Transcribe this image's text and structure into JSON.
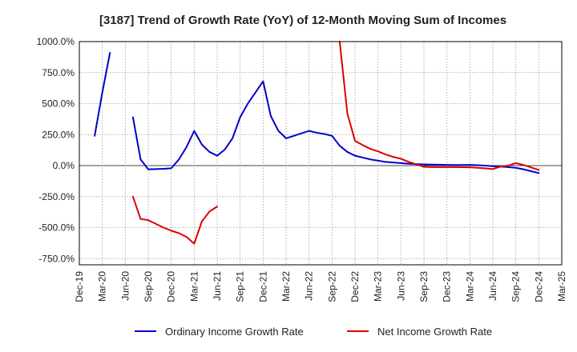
{
  "chart_data": {
    "type": "line",
    "title": "[3187]  Trend of Growth Rate (YoY) of 12-Month Moving Sum of Incomes",
    "xlabel": "",
    "ylabel": "",
    "ylim": [
      -800,
      1000
    ],
    "xlim": [
      "2019-12",
      "2025-03"
    ],
    "grid": true,
    "legend_position": "bottom",
    "y_ticks": [
      {
        "value": 1000,
        "label": "1000.0%"
      },
      {
        "value": 750,
        "label": "750.0%"
      },
      {
        "value": 500,
        "label": "500.0%"
      },
      {
        "value": 250,
        "label": "250.0%"
      },
      {
        "value": 0,
        "label": "0.0%"
      },
      {
        "value": -250,
        "label": "-250.0%"
      },
      {
        "value": -500,
        "label": "-500.0%"
      },
      {
        "value": -750,
        "label": "-750.0%"
      }
    ],
    "x_ticks": [
      {
        "date": "2019-12",
        "label": "Dec-19"
      },
      {
        "date": "2020-03",
        "label": "Mar-20"
      },
      {
        "date": "2020-06",
        "label": "Jun-20"
      },
      {
        "date": "2020-09",
        "label": "Sep-20"
      },
      {
        "date": "2020-12",
        "label": "Dec-20"
      },
      {
        "date": "2021-03",
        "label": "Mar-21"
      },
      {
        "date": "2021-06",
        "label": "Jun-21"
      },
      {
        "date": "2021-09",
        "label": "Sep-21"
      },
      {
        "date": "2021-12",
        "label": "Dec-21"
      },
      {
        "date": "2022-03",
        "label": "Mar-22"
      },
      {
        "date": "2022-06",
        "label": "Jun-22"
      },
      {
        "date": "2022-09",
        "label": "Sep-22"
      },
      {
        "date": "2022-12",
        "label": "Dec-22"
      },
      {
        "date": "2023-03",
        "label": "Mar-23"
      },
      {
        "date": "2023-06",
        "label": "Jun-23"
      },
      {
        "date": "2023-09",
        "label": "Sep-23"
      },
      {
        "date": "2023-12",
        "label": "Dec-23"
      },
      {
        "date": "2024-03",
        "label": "Mar-24"
      },
      {
        "date": "2024-06",
        "label": "Jun-24"
      },
      {
        "date": "2024-09",
        "label": "Sep-24"
      },
      {
        "date": "2024-12",
        "label": "Dec-24"
      },
      {
        "date": "2025-03",
        "label": "Mar-25"
      }
    ],
    "series": [
      {
        "name": "Ordinary Income Growth Rate",
        "color": "#0000cc",
        "points": [
          [
            "2020-02",
            240
          ],
          [
            "2020-03",
            590
          ],
          [
            "2020-04",
            910
          ],
          [
            "2020-05",
            null
          ],
          [
            "2020-07",
            390
          ],
          [
            "2020-08",
            50
          ],
          [
            "2020-09",
            -30
          ],
          [
            "2020-10",
            -28
          ],
          [
            "2020-11",
            -26
          ],
          [
            "2020-12",
            -22
          ],
          [
            "2021-01",
            50
          ],
          [
            "2021-02",
            150
          ],
          [
            "2021-03",
            280
          ],
          [
            "2021-04",
            170
          ],
          [
            "2021-05",
            110
          ],
          [
            "2021-06",
            80
          ],
          [
            "2021-07",
            130
          ],
          [
            "2021-08",
            220
          ],
          [
            "2021-09",
            390
          ],
          [
            "2021-10",
            500
          ],
          [
            "2021-11",
            590
          ],
          [
            "2021-12",
            680
          ],
          [
            "2022-01",
            400
          ],
          [
            "2022-02",
            280
          ],
          [
            "2022-03",
            220
          ],
          [
            "2022-04",
            240
          ],
          [
            "2022-05",
            260
          ],
          [
            "2022-06",
            280
          ],
          [
            "2022-07",
            265
          ],
          [
            "2022-08",
            255
          ],
          [
            "2022-09",
            240
          ],
          [
            "2022-10",
            160
          ],
          [
            "2022-11",
            110
          ],
          [
            "2022-12",
            80
          ],
          [
            "2023-01",
            65
          ],
          [
            "2023-02",
            50
          ],
          [
            "2023-03",
            40
          ],
          [
            "2023-04",
            30
          ],
          [
            "2023-05",
            25
          ],
          [
            "2023-06",
            20
          ],
          [
            "2023-07",
            15
          ],
          [
            "2023-08",
            12
          ],
          [
            "2023-09",
            10
          ],
          [
            "2023-10",
            8
          ],
          [
            "2023-11",
            7
          ],
          [
            "2023-12",
            6
          ],
          [
            "2024-01",
            5
          ],
          [
            "2024-02",
            5
          ],
          [
            "2024-03",
            6
          ],
          [
            "2024-04",
            3
          ],
          [
            "2024-05",
            0
          ],
          [
            "2024-06",
            -5
          ],
          [
            "2024-07",
            -8
          ],
          [
            "2024-08",
            -12
          ],
          [
            "2024-09",
            -18
          ],
          [
            "2024-10",
            -30
          ],
          [
            "2024-11",
            -45
          ],
          [
            "2024-12",
            -60
          ]
        ]
      },
      {
        "name": "Net Income Growth Rate",
        "color": "#dd0000",
        "points": [
          [
            "2020-07",
            -250
          ],
          [
            "2020-08",
            -430
          ],
          [
            "2020-09",
            -440
          ],
          [
            "2020-10",
            -470
          ],
          [
            "2020-11",
            -500
          ],
          [
            "2020-12",
            -525
          ],
          [
            "2021-01",
            -545
          ],
          [
            "2021-02",
            -575
          ],
          [
            "2021-03",
            -630
          ],
          [
            "2021-04",
            -450
          ],
          [
            "2021-05",
            -370
          ],
          [
            "2021-06",
            -330
          ],
          [
            "2021-07",
            null
          ],
          [
            "2022-10",
            1000
          ],
          [
            "2022-11",
            420
          ],
          [
            "2022-12",
            200
          ],
          [
            "2023-01",
            165
          ],
          [
            "2023-02",
            135
          ],
          [
            "2023-03",
            115
          ],
          [
            "2023-04",
            90
          ],
          [
            "2023-05",
            70
          ],
          [
            "2023-06",
            55
          ],
          [
            "2023-07",
            30
          ],
          [
            "2023-08",
            10
          ],
          [
            "2023-09",
            -10
          ],
          [
            "2023-10",
            -12
          ],
          [
            "2023-11",
            -12
          ],
          [
            "2023-12",
            -12
          ],
          [
            "2024-01",
            -12
          ],
          [
            "2024-02",
            -13
          ],
          [
            "2024-03",
            -14
          ],
          [
            "2024-04",
            -18
          ],
          [
            "2024-05",
            -22
          ],
          [
            "2024-06",
            -28
          ],
          [
            "2024-07",
            -8
          ],
          [
            "2024-08",
            0
          ],
          [
            "2024-09",
            20
          ],
          [
            "2024-10",
            5
          ],
          [
            "2024-11",
            -15
          ],
          [
            "2024-12",
            -35
          ]
        ]
      }
    ]
  }
}
